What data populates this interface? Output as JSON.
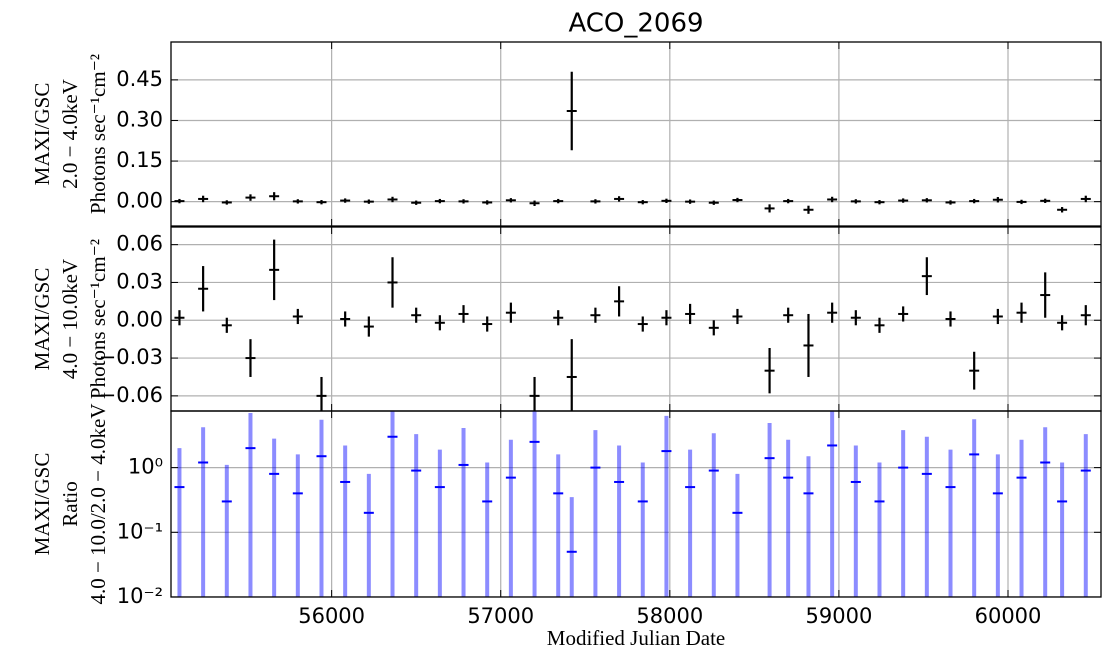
{
  "chart_data": [
    {
      "type": "errorbar",
      "title": "ACO_2069",
      "ylabel": [
        "MAXI/GSC",
        "2.0 − 4.0keV",
        "Photons sec⁻¹cm⁻²"
      ],
      "color": "#000000",
      "grid": true,
      "xlim": [
        55050,
        60550
      ],
      "ylim": [
        -0.09,
        0.59
      ],
      "yticks": [
        {
          "value": 0,
          "label": "0.00"
        },
        0.15,
        {
          "value": 0.3,
          "label": "0.30"
        },
        0.45
      ],
      "x": [
        55100,
        55240,
        55380,
        55520,
        55660,
        55800,
        55940,
        56080,
        56220,
        56360,
        56500,
        56640,
        56780,
        56920,
        57060,
        57200,
        57340,
        57420,
        57560,
        57700,
        57840,
        57980,
        58120,
        58260,
        58400,
        58590,
        58700,
        58820,
        58960,
        59100,
        59240,
        59380,
        59520,
        59660,
        59800,
        59940,
        60080,
        60220,
        60320,
        60460
      ],
      "values": [
        0.002,
        0.01,
        -0.003,
        0.015,
        0.02,
        0.001,
        -0.002,
        0.004,
        0.0,
        0.008,
        -0.004,
        0.002,
        0.001,
        -0.003,
        0.005,
        -0.006,
        0.002,
        0.335,
        0.001,
        0.01,
        -0.002,
        0.003,
        0.0,
        -0.004,
        0.006,
        -0.025,
        0.002,
        -0.03,
        0.008,
        0.001,
        -0.002,
        0.004,
        0.005,
        -0.003,
        0.002,
        0.007,
        -0.001,
        0.003,
        -0.03,
        0.01
      ],
      "errors": [
        0.008,
        0.012,
        0.008,
        0.012,
        0.015,
        0.008,
        0.008,
        0.008,
        0.008,
        0.01,
        0.008,
        0.008,
        0.008,
        0.008,
        0.008,
        0.01,
        0.008,
        0.145,
        0.008,
        0.01,
        0.008,
        0.008,
        0.008,
        0.008,
        0.008,
        0.015,
        0.008,
        0.015,
        0.01,
        0.008,
        0.008,
        0.008,
        0.008,
        0.008,
        0.008,
        0.01,
        0.008,
        0.008,
        0.01,
        0.012
      ]
    },
    {
      "type": "errorbar",
      "ylabel": [
        "MAXI/GSC",
        "4.0 − 10.0keV",
        "Photons sec⁻¹cm⁻²"
      ],
      "color": "#000000",
      "grid": true,
      "xlim": [
        55050,
        60550
      ],
      "ylim": [
        -0.072,
        0.074
      ],
      "yticks": [
        {
          "value": -0.06,
          "label": "−0.06"
        },
        {
          "value": -0.03,
          "label": "−0.03"
        },
        {
          "value": 0,
          "label": "0.00"
        },
        0.03,
        0.06
      ],
      "x": [
        55100,
        55240,
        55380,
        55520,
        55660,
        55800,
        55940,
        56080,
        56220,
        56360,
        56500,
        56640,
        56780,
        56920,
        57060,
        57200,
        57340,
        57420,
        57560,
        57700,
        57840,
        57980,
        58120,
        58260,
        58400,
        58590,
        58700,
        58820,
        58960,
        59100,
        59240,
        59380,
        59520,
        59660,
        59800,
        59940,
        60080,
        60220,
        60320,
        60460
      ],
      "values": [
        0.002,
        0.025,
        -0.004,
        -0.03,
        0.04,
        0.003,
        -0.06,
        0.001,
        -0.005,
        0.03,
        0.004,
        -0.002,
        0.005,
        -0.003,
        0.006,
        -0.06,
        0.002,
        -0.045,
        0.004,
        0.015,
        -0.003,
        0.002,
        0.005,
        -0.006,
        0.003,
        -0.04,
        0.004,
        -0.02,
        0.006,
        0.002,
        -0.004,
        0.005,
        0.035,
        0.001,
        -0.04,
        0.003,
        0.006,
        0.02,
        -0.002,
        0.004
      ],
      "errors": [
        0.006,
        0.018,
        0.006,
        0.015,
        0.024,
        0.006,
        0.015,
        0.006,
        0.008,
        0.02,
        0.006,
        0.006,
        0.007,
        0.006,
        0.008,
        0.015,
        0.006,
        0.03,
        0.006,
        0.012,
        0.006,
        0.006,
        0.008,
        0.006,
        0.006,
        0.018,
        0.006,
        0.025,
        0.008,
        0.006,
        0.006,
        0.006,
        0.015,
        0.006,
        0.015,
        0.006,
        0.008,
        0.018,
        0.006,
        0.008
      ]
    },
    {
      "type": "errorbar",
      "ylog": true,
      "ylabel": [
        "MAXI/GSC",
        "Ratio",
        "4.0 − 10.0/2.0 − 4.0keV"
      ],
      "xlabel": "Modified Julian Date",
      "color": "#0000ff",
      "grid": true,
      "xlim": [
        55050,
        60550
      ],
      "ylim": [
        0.01,
        7.5
      ],
      "xticks": [
        56000,
        57000,
        58000,
        59000,
        60000
      ],
      "yticks": [
        {
          "value": 0.01,
          "label": "10⁻²"
        },
        {
          "value": 0.1,
          "label": "10⁻¹"
        },
        {
          "value": 1,
          "label": "10⁰"
        }
      ],
      "x": [
        55100,
        55240,
        55380,
        55520,
        55660,
        55800,
        55940,
        56080,
        56220,
        56360,
        56500,
        56640,
        56780,
        56920,
        57060,
        57200,
        57340,
        57420,
        57560,
        57700,
        57840,
        57980,
        58120,
        58260,
        58400,
        58590,
        58700,
        58820,
        58960,
        59100,
        59240,
        59380,
        59520,
        59660,
        59800,
        59940,
        60080,
        60220,
        60320,
        60460
      ],
      "values": [
        0.5,
        1.2,
        0.3,
        2.0,
        0.8,
        0.4,
        1.5,
        0.6,
        0.2,
        3.0,
        0.9,
        0.5,
        1.1,
        0.3,
        0.7,
        2.5,
        0.4,
        0.05,
        1.0,
        0.6,
        0.3,
        1.8,
        0.5,
        0.9,
        0.2,
        1.4,
        0.7,
        0.4,
        2.2,
        0.6,
        0.3,
        1.0,
        0.8,
        0.5,
        1.6,
        0.4,
        0.7,
        1.2,
        0.3,
        0.9
      ],
      "errors": [
        1.5,
        3.0,
        0.8,
        5.0,
        2.0,
        1.2,
        4.0,
        1.6,
        0.6,
        6.0,
        2.4,
        1.4,
        3.0,
        0.9,
        2.0,
        6.0,
        1.2,
        0.3,
        2.8,
        1.6,
        0.9,
        4.5,
        1.4,
        2.5,
        0.6,
        3.5,
        2.0,
        1.1,
        5.5,
        1.6,
        0.9,
        2.8,
        2.2,
        1.4,
        4.0,
        1.2,
        2.0,
        3.0,
        0.9,
        2.4
      ]
    }
  ]
}
